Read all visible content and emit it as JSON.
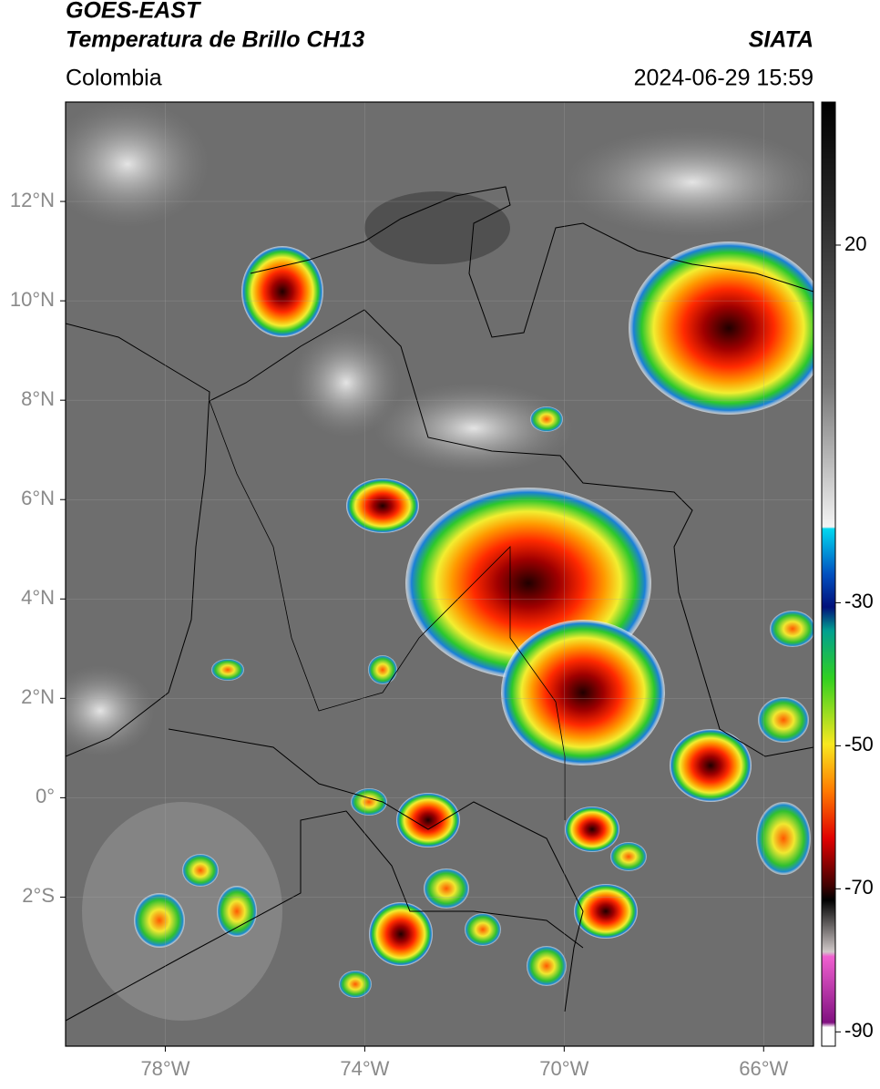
{
  "header": {
    "title_line1": "GOES-EAST",
    "title_line2": "Temperatura de Brillo CH13",
    "source": "SIATA",
    "region": "Colombia",
    "datetime": "2024-06-29 15:59"
  },
  "map": {
    "xlim": [
      -80,
      -65
    ],
    "ylim": [
      -5,
      14
    ],
    "lon_ticks": [
      {
        "value": -78,
        "label": "78°W"
      },
      {
        "value": -74,
        "label": "74°W"
      },
      {
        "value": -70,
        "label": "70°W"
      },
      {
        "value": -66,
        "label": "66°W"
      }
    ],
    "lat_ticks": [
      {
        "value": 12,
        "label": "12°N"
      },
      {
        "value": 10,
        "label": "10°N"
      },
      {
        "value": 8,
        "label": "8°N"
      },
      {
        "value": 6,
        "label": "6°N"
      },
      {
        "value": 4,
        "label": "4°N"
      },
      {
        "value": 2,
        "label": "2°N"
      },
      {
        "value": 0,
        "label": "0°"
      },
      {
        "value": -2,
        "label": "2°S"
      }
    ],
    "grid": true
  },
  "colorbar": {
    "ylim": [
      -92,
      40
    ],
    "yticks": [
      20,
      -30,
      -50,
      -70,
      -90
    ]
  }
}
